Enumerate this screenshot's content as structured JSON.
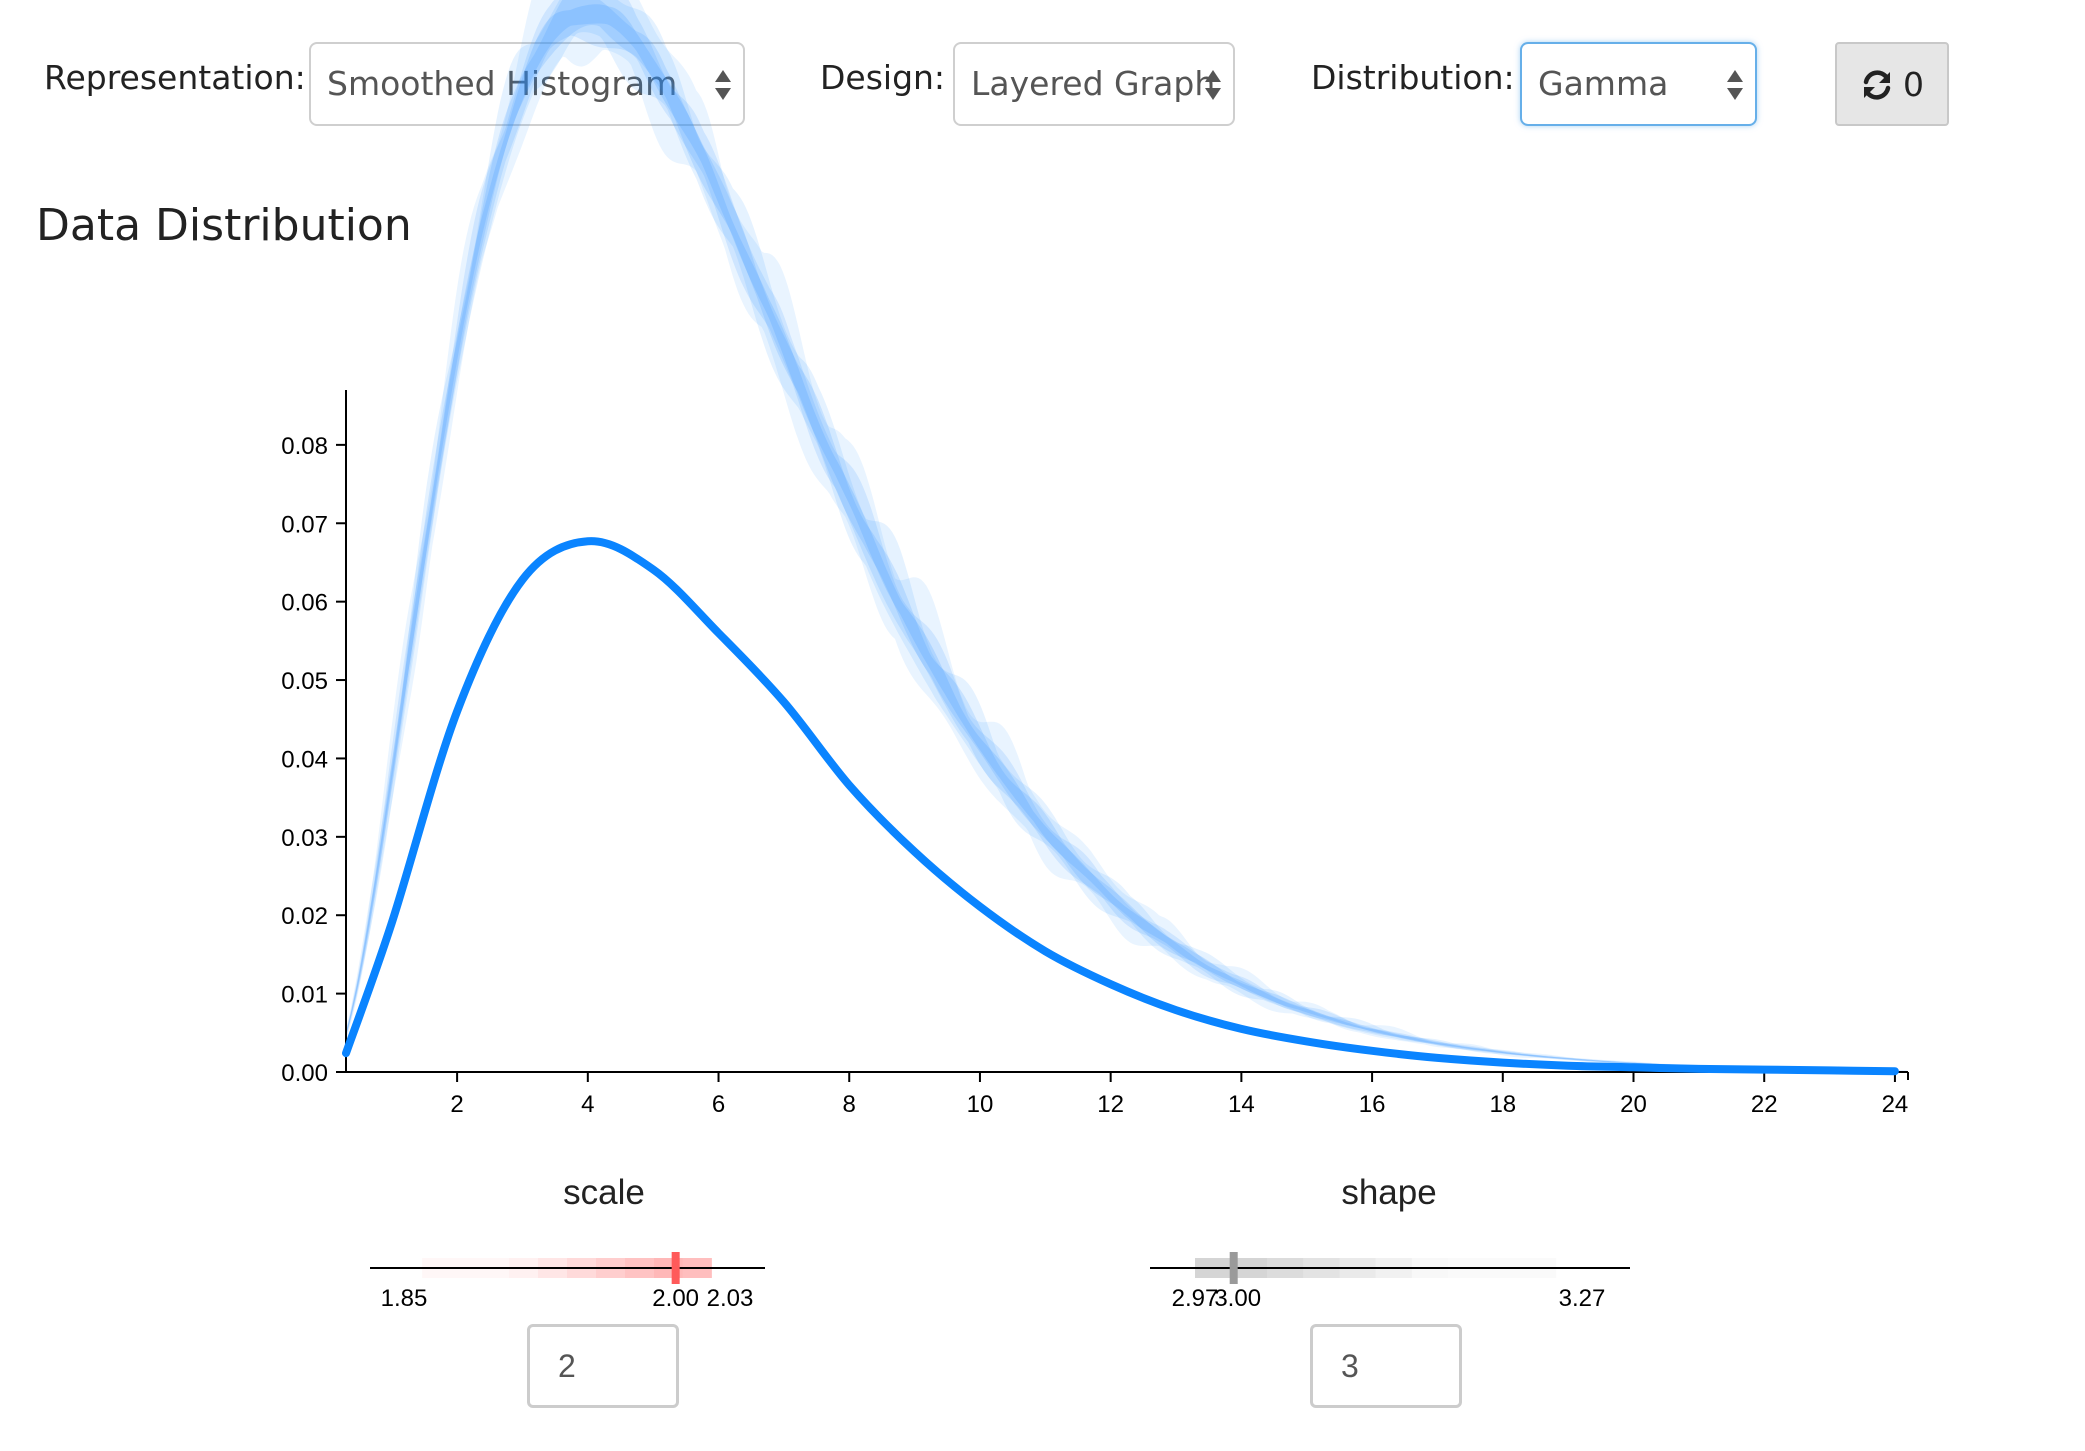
{
  "controls": {
    "representation": {
      "label": "Representation:",
      "value": "Smoothed Histogram"
    },
    "design": {
      "label": "Design:",
      "value": "Layered Graph"
    },
    "distribution": {
      "label": "Distribution:",
      "value": "Gamma"
    },
    "refresh": {
      "icon": "refresh-icon",
      "count": "0"
    }
  },
  "page": {
    "title": "Data Distribution"
  },
  "colors": {
    "curve": "#0a84ff",
    "band": "#2a90ff",
    "scale_slider": "#ff5a5a",
    "shape_slider": "#9a9a9a",
    "focus": "#66afe9"
  },
  "chart_data": {
    "type": "line",
    "title": "",
    "xlabel": "",
    "ylabel": "",
    "xlim": [
      0.3,
      24.2
    ],
    "ylim": [
      0,
      0.087
    ],
    "x_ticks": [
      2,
      4,
      6,
      8,
      10,
      12,
      14,
      16,
      18,
      20,
      22,
      24
    ],
    "y_ticks": [
      0.0,
      0.01,
      0.02,
      0.03,
      0.04,
      0.05,
      0.06,
      0.07,
      0.08
    ],
    "y_tick_labels": [
      "0.00",
      "0.01",
      "0.02",
      "0.03",
      "0.04",
      "0.05",
      "0.06",
      "0.07",
      "0.08"
    ],
    "grid": false,
    "series": [
      {
        "distribution": "gamma",
        "shape": 3,
        "scale": 2,
        "x": [
          0.3,
          1,
          2,
          3,
          4,
          5,
          6,
          7,
          8,
          9,
          10,
          11,
          12,
          13,
          14,
          15,
          16,
          17,
          18,
          19,
          20,
          21,
          22,
          23,
          24
        ],
        "y": [
          0.0024,
          0.019,
          0.046,
          0.0628,
          0.0677,
          0.0641,
          0.056,
          0.0472,
          0.0366,
          0.0281,
          0.0211,
          0.0154,
          0.0112,
          0.0079,
          0.0055,
          0.0039,
          0.0027,
          0.0018,
          0.0012,
          0.0008,
          0.0006,
          0.0004,
          0.0003,
          0.0002,
          0.0001
        ]
      }
    ]
  },
  "sliders": {
    "scale": {
      "label": "scale",
      "min": 1.85,
      "max": 2.03,
      "min_label": "1.85",
      "max_label": "2.03",
      "value": 2.0,
      "value_label": "2.00",
      "band": [
        1.86,
        2.02
      ],
      "input_value": "2"
    },
    "shape": {
      "label": "shape",
      "min": 2.97,
      "max": 3.27,
      "min_label": "2.97",
      "max_label": "3.27",
      "value": 3.0,
      "value_label": "3.00",
      "band": [
        2.97,
        3.25
      ],
      "input_value": "3"
    }
  }
}
